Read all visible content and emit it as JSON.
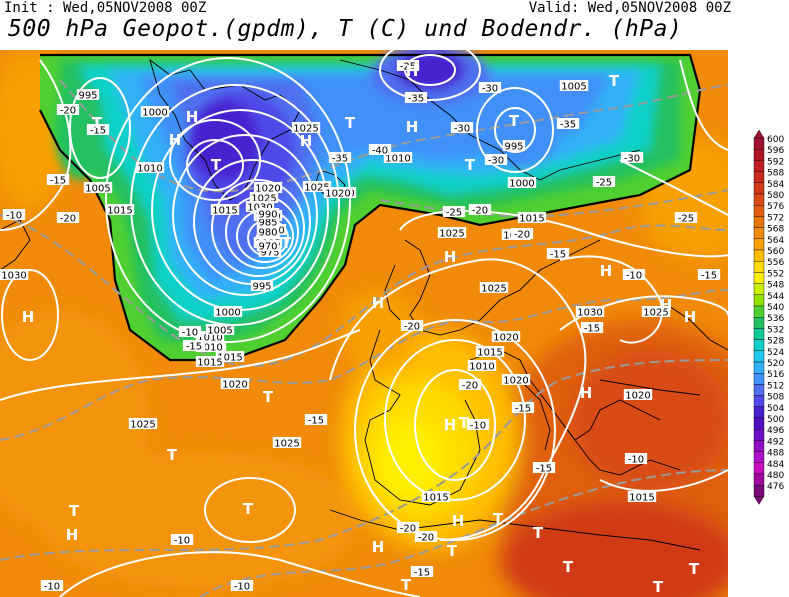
{
  "header": {
    "init": "Init : Wed,05NOV2008 00Z",
    "valid": "Valid: Wed,05NOV2008 00Z",
    "title": "500 hPa Geopot.(gpdm), T (C) und Bodendr. (hPa)"
  },
  "legend": {
    "unit": "gpdm",
    "levels": [
      {
        "v": "600",
        "c": "#a01030"
      },
      {
        "v": "596",
        "c": "#b01428"
      },
      {
        "v": "592",
        "c": "#c01e22"
      },
      {
        "v": "588",
        "c": "#c82a1c"
      },
      {
        "v": "584",
        "c": "#d03a18"
      },
      {
        "v": "580",
        "c": "#d84c14"
      },
      {
        "v": "576",
        "c": "#e06010"
      },
      {
        "v": "572",
        "c": "#e8740c"
      },
      {
        "v": "568",
        "c": "#f08a08"
      },
      {
        "v": "564",
        "c": "#f8a004"
      },
      {
        "v": "560",
        "c": "#ffbe00"
      },
      {
        "v": "556",
        "c": "#ffdc00"
      },
      {
        "v": "552",
        "c": "#fff000"
      },
      {
        "v": "548",
        "c": "#c8f000"
      },
      {
        "v": "544",
        "c": "#90e000"
      },
      {
        "v": "540",
        "c": "#50d030"
      },
      {
        "v": "536",
        "c": "#20c060"
      },
      {
        "v": "532",
        "c": "#10c898"
      },
      {
        "v": "528",
        "c": "#10d0c8"
      },
      {
        "v": "524",
        "c": "#20c8f0"
      },
      {
        "v": "520",
        "c": "#30b0f8"
      },
      {
        "v": "516",
        "c": "#4090f8"
      },
      {
        "v": "512",
        "c": "#5070f0"
      },
      {
        "v": "508",
        "c": "#5048e8"
      },
      {
        "v": "504",
        "c": "#4820d0"
      },
      {
        "v": "500",
        "c": "#5010c0"
      },
      {
        "v": "496",
        "c": "#7010c8"
      },
      {
        "v": "492",
        "c": "#9010c8"
      },
      {
        "v": "488",
        "c": "#b010c8"
      },
      {
        "v": "484",
        "c": "#c810c0"
      },
      {
        "v": "480",
        "c": "#a008a0"
      },
      {
        "v": "476",
        "c": "#780878"
      }
    ]
  },
  "isobar_labels": [
    "995",
    "1000",
    "1005",
    "1010",
    "1015",
    "1020",
    "1025",
    "1030",
    "1010",
    "1005",
    "1000",
    "1015",
    "1015",
    "1005",
    "1010",
    "995",
    "985",
    "980",
    "975",
    "970",
    "990",
    "1000",
    "1005",
    "1010",
    "1015",
    "1020",
    "1025",
    "1025",
    "1025",
    "1020",
    "1015",
    "1025",
    "1020",
    "1030",
    "1030",
    "1025",
    "1020",
    "1015",
    "1010",
    "1025",
    "1020",
    "1015",
    "1020",
    "995",
    "1000",
    "1005",
    "1010",
    "1015",
    "1020",
    "1025"
  ],
  "temperature_labels": [
    "-20",
    "-15",
    "-15",
    "-10",
    "-20",
    "-25",
    "-30",
    "-35",
    "-40",
    "-35",
    "-30",
    "-25",
    "-30",
    "-35",
    "-30",
    "-25",
    "-20",
    "-15",
    "-20",
    "-25",
    "-20",
    "-15",
    "-10",
    "-15",
    "-20",
    "-10",
    "-15",
    "-15",
    "-10",
    "-10",
    "-10",
    "-20",
    "-15",
    "-10",
    "-20",
    "-15",
    "-10",
    "-15"
  ],
  "pressure_centers": [
    "H",
    "T",
    "H",
    "T",
    "H",
    "H",
    "T",
    "H",
    "T",
    "T",
    "T",
    "H",
    "H",
    "H",
    "T",
    "H",
    "H",
    "H",
    "T",
    "T",
    "T",
    "T",
    "T",
    "H",
    "T",
    "H",
    "T",
    "T",
    "T",
    "T",
    "H",
    "T",
    "H",
    "H",
    "T"
  ]
}
